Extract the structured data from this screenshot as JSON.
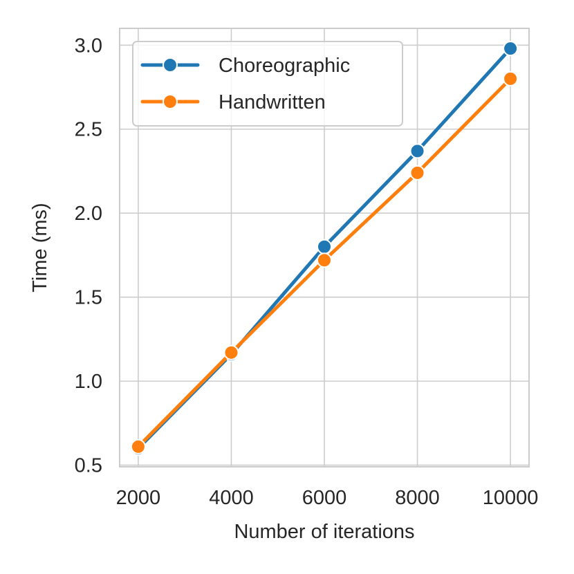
{
  "chart_data": {
    "type": "line",
    "title": "",
    "xlabel": "Number of iterations",
    "ylabel": "Time (ms)",
    "x": [
      2000,
      4000,
      6000,
      8000,
      10000
    ],
    "x_tick_labels": [
      "2000",
      "4000",
      "6000",
      "8000",
      "10000"
    ],
    "y_ticks": [
      0.5,
      1.0,
      1.5,
      2.0,
      2.5,
      3.0
    ],
    "y_tick_labels": [
      "0.5",
      "1.0",
      "1.5",
      "2.0",
      "2.5",
      "3.0"
    ],
    "xlim": [
      1600,
      10400
    ],
    "ylim": [
      0.49,
      3.1
    ],
    "grid": true,
    "legend_position": "top-left",
    "series": [
      {
        "name": "Choreographic",
        "color": "#1f77b4",
        "values": [
          0.6,
          1.16,
          1.8,
          2.37,
          2.98
        ]
      },
      {
        "name": "Handwritten",
        "color": "#ff7f0e",
        "values": [
          0.61,
          1.17,
          1.72,
          2.24,
          2.8
        ]
      }
    ]
  }
}
